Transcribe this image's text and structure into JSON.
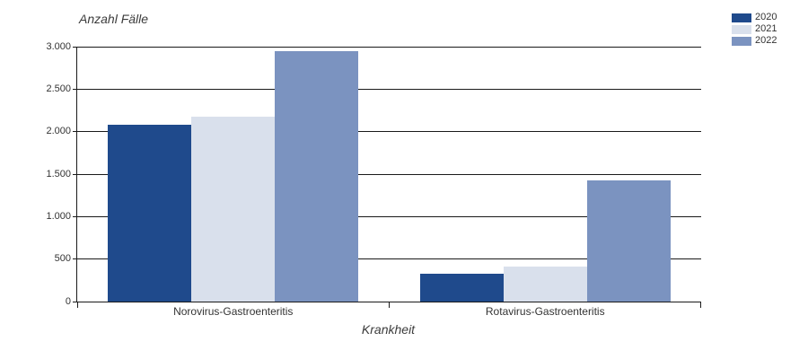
{
  "chart_data": {
    "type": "bar",
    "title": "Anzahl Fälle",
    "xlabel": "Krankheit",
    "ylabel": "Anzahl Fälle",
    "categories": [
      "Norovirus-Gastroenteritis",
      "Rotavirus-Gastroenteritis"
    ],
    "series": [
      {
        "name": "2020",
        "color": "#1f4a8c",
        "values": [
          2080,
          330
        ]
      },
      {
        "name": "2021",
        "color": "#d9e0ec",
        "values": [
          2180,
          410
        ]
      },
      {
        "name": "2022",
        "color": "#7b93c0",
        "values": [
          2950,
          1430
        ]
      }
    ],
    "ylim": [
      0,
      3000
    ],
    "yticks": [
      0,
      500,
      1000,
      1500,
      2000,
      2500,
      3000
    ],
    "ytick_labels": [
      "0",
      "500",
      "1.000",
      "1.500",
      "2.000",
      "2.500",
      "3.000"
    ],
    "grid": true,
    "legend_position": "top-right",
    "legend_entries": [
      "2020",
      "2021",
      "2022"
    ],
    "colors": {
      "grid": "#1a1a1a",
      "axis": "#1a1a1a",
      "text": "#333333"
    }
  }
}
